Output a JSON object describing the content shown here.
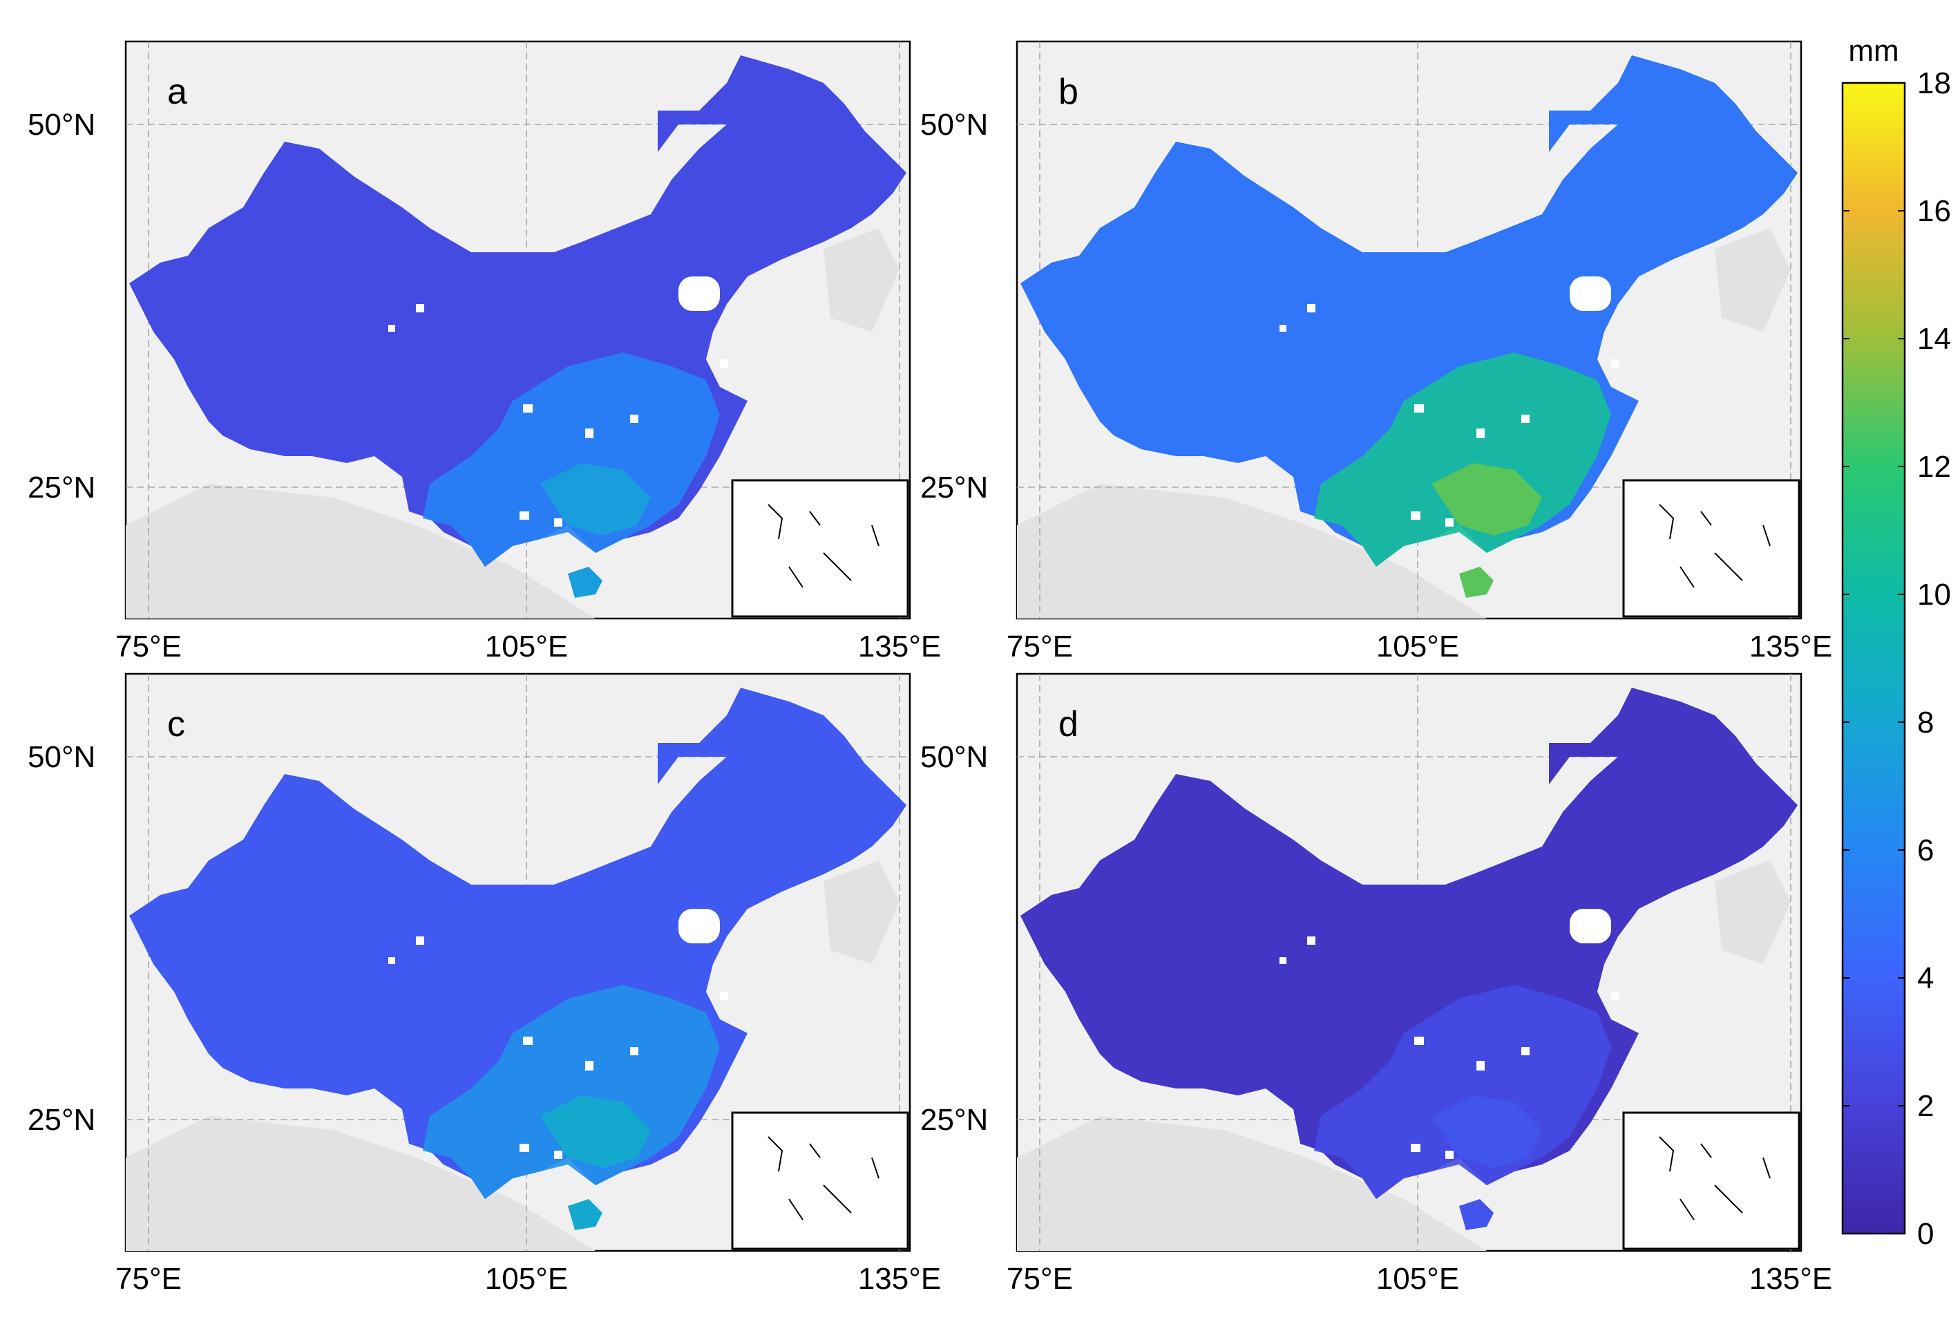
{
  "figure": {
    "lat_ticks": [
      "50°N",
      "25°N"
    ],
    "lon_ticks": [
      "75°E",
      "105°E",
      "135°E"
    ],
    "panels": [
      {
        "id": "a",
        "label": "a",
        "level": 2.6,
        "south_level": 5.8,
        "hotspot_level": 7.4
      },
      {
        "id": "b",
        "label": "b",
        "level": 5.0,
        "south_level": 10.5,
        "hotspot_level": 12.8
      },
      {
        "id": "c",
        "label": "c",
        "level": 3.4,
        "south_level": 6.6,
        "hotspot_level": 8.2
      },
      {
        "id": "d",
        "label": "d",
        "level": 1.2,
        "south_level": 2.6,
        "hotspot_level": 3.2
      }
    ]
  },
  "colorbar": {
    "unit": "mm",
    "min": 0,
    "max": 18,
    "ticks": [
      "0",
      "2",
      "4",
      "6",
      "8",
      "10",
      "12",
      "14",
      "16",
      "18"
    ],
    "colors": [
      "#3e26a8",
      "#4741d8",
      "#3d63fb",
      "#2587f4",
      "#16a6d3",
      "#0fbba6",
      "#2bc871",
      "#9ebf3b",
      "#f1b72f",
      "#f9f716"
    ]
  },
  "map_colors": {
    "land_background": "#f0f0f0",
    "neighbor_land": "#e2e2e2",
    "missing_pixel": "#ffffff"
  }
}
